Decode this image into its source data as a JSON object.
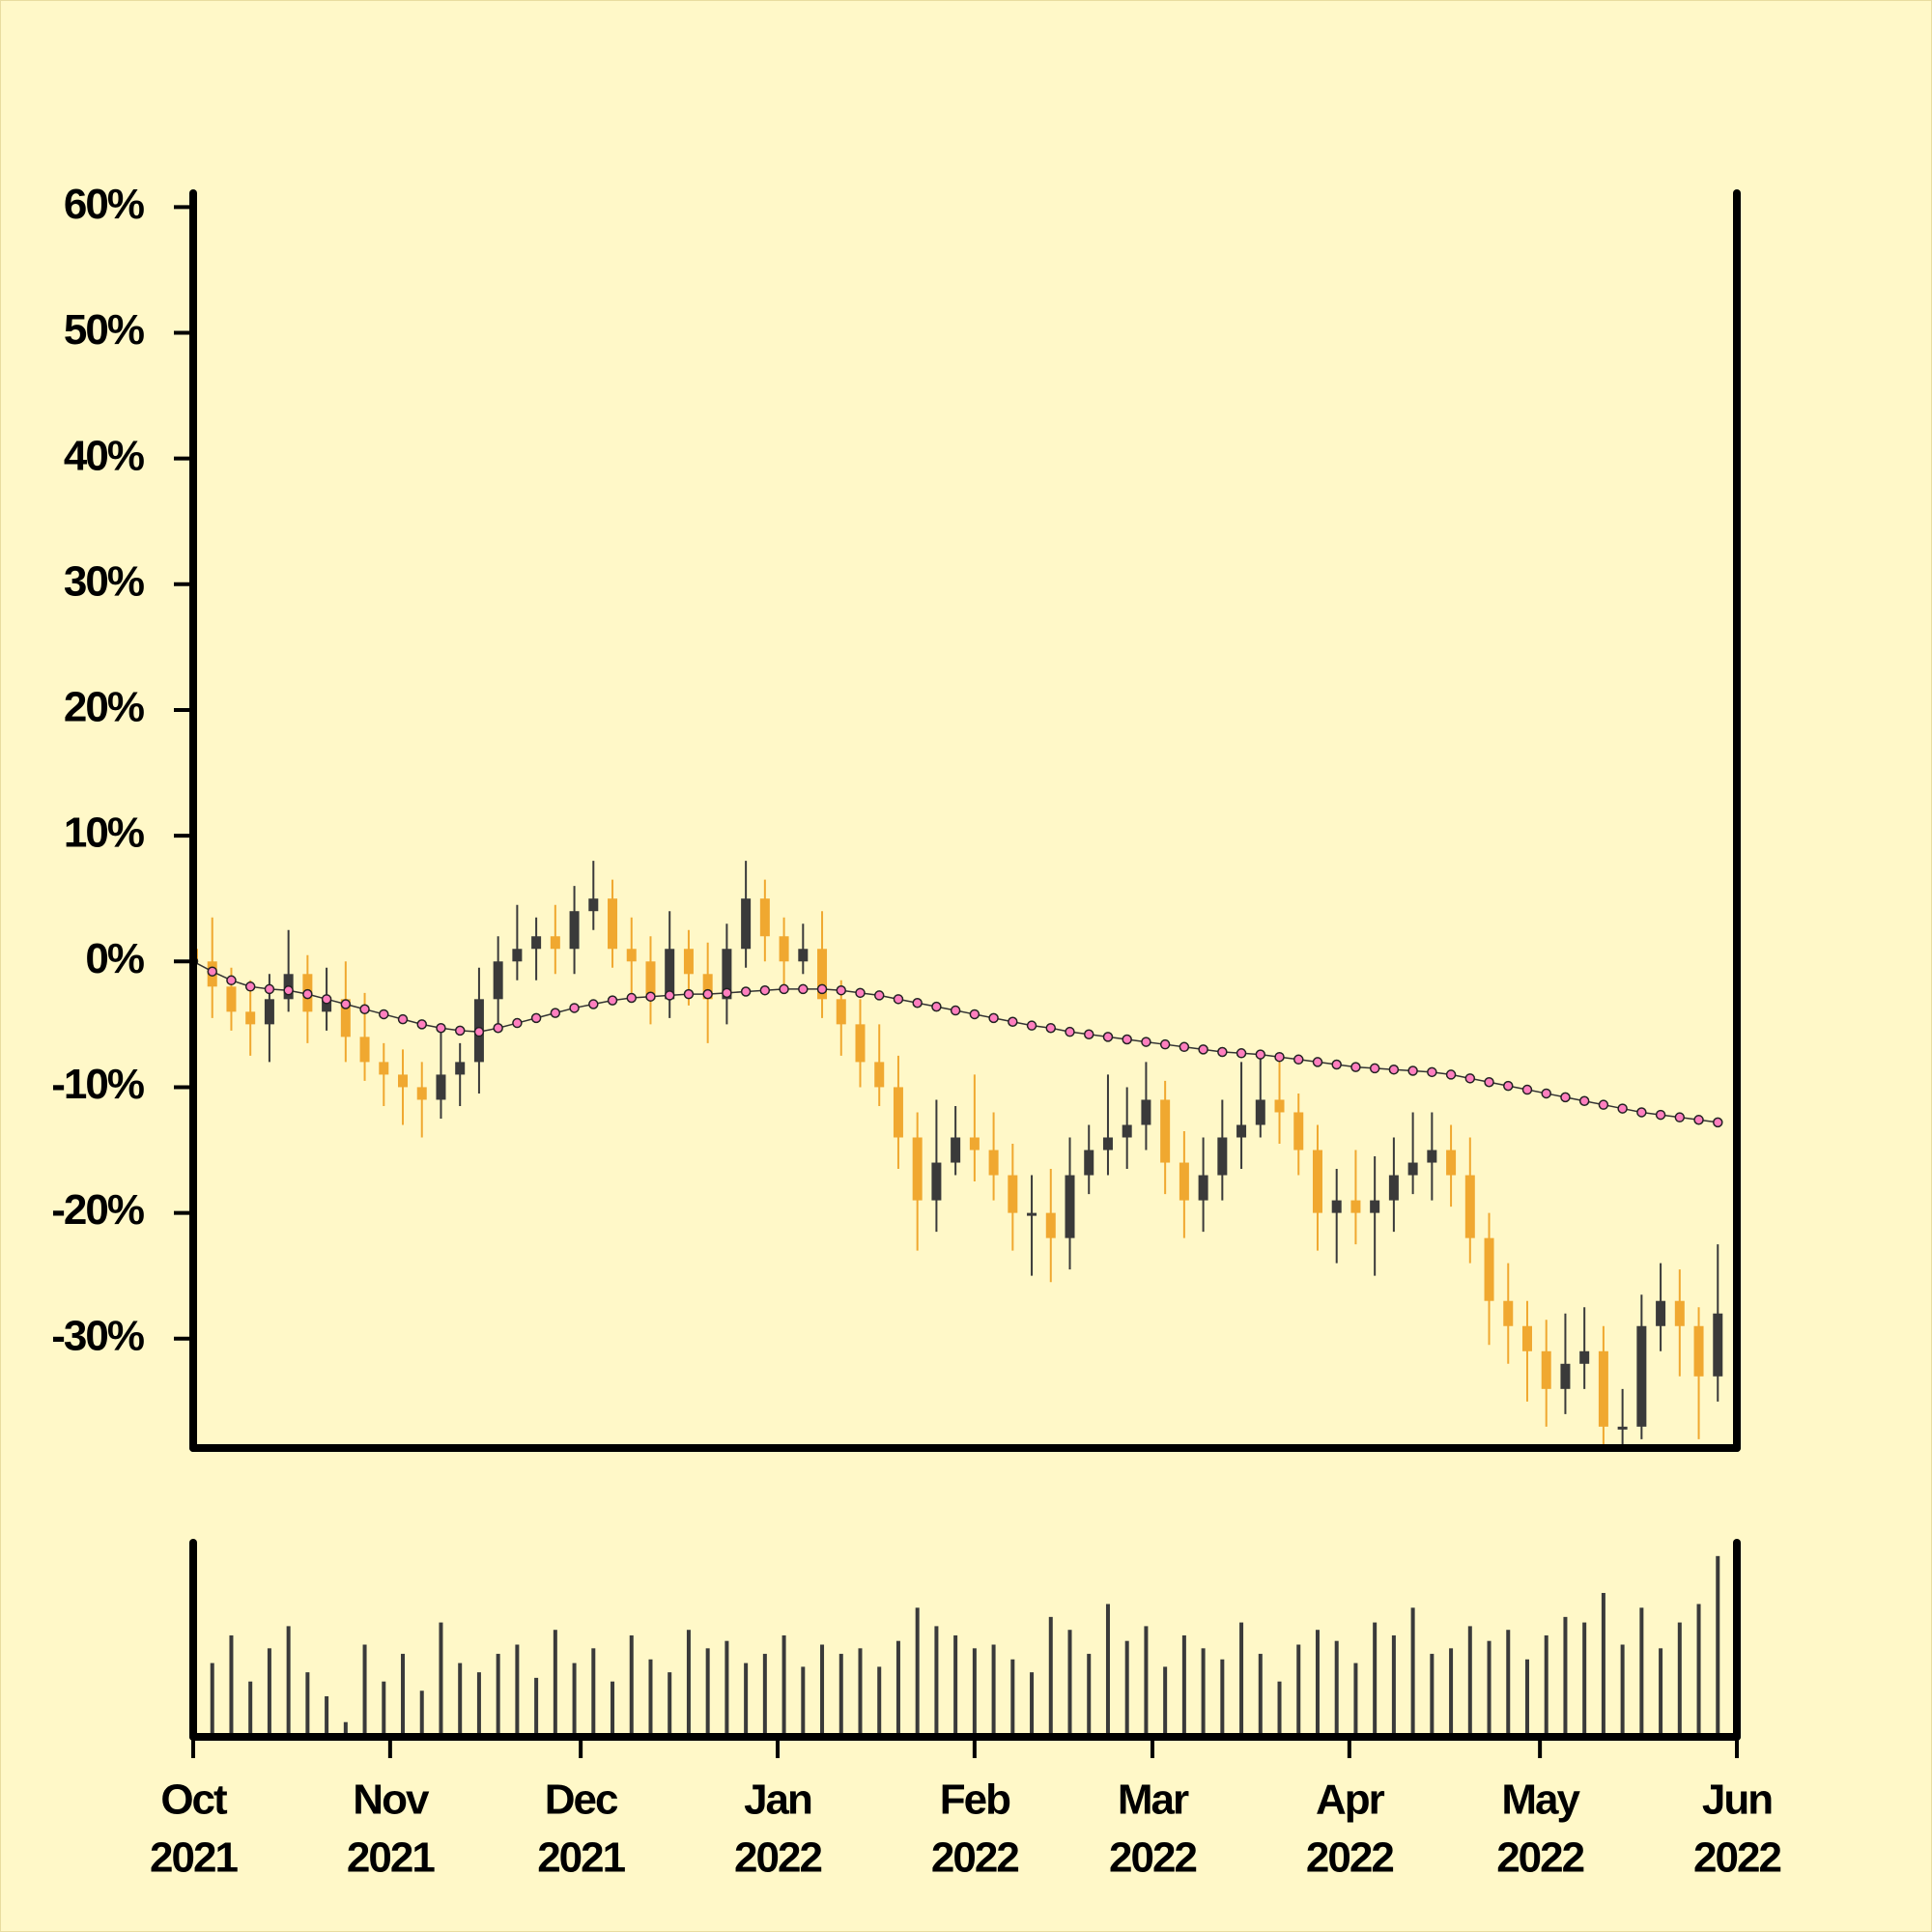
{
  "chart_data": {
    "type": "candlestick",
    "x": [
      0,
      3,
      6,
      9,
      12,
      15,
      18,
      21,
      24,
      27,
      30,
      33,
      36,
      39,
      42,
      45,
      48,
      51,
      54,
      57,
      60,
      63,
      66,
      69,
      72,
      75,
      78,
      81,
      84,
      87,
      90,
      93,
      96,
      99,
      102,
      105,
      108,
      111,
      114,
      117,
      120,
      123,
      126,
      129,
      132,
      135,
      138,
      141,
      144,
      147,
      150,
      153,
      156,
      159,
      162,
      165,
      168,
      171,
      174,
      177,
      180,
      183,
      186,
      189,
      192,
      195,
      198,
      201,
      204,
      207,
      210,
      213,
      216,
      219,
      222,
      225,
      228,
      231,
      234,
      237,
      240
    ],
    "xlim": [
      0,
      243
    ],
    "xticks": [
      {
        "value": 0,
        "label": [
          "Oct",
          "2021"
        ]
      },
      {
        "value": 31,
        "label": [
          "Nov",
          "2021"
        ]
      },
      {
        "value": 61,
        "label": [
          "Dec",
          "2021"
        ]
      },
      {
        "value": 92,
        "label": [
          "Jan",
          "2022"
        ]
      },
      {
        "value": 123,
        "label": [
          "Feb",
          "2022"
        ]
      },
      {
        "value": 151,
        "label": [
          "Mar",
          "2022"
        ]
      },
      {
        "value": 182,
        "label": [
          "Apr",
          "2022"
        ]
      },
      {
        "value": 212,
        "label": [
          "May",
          "2022"
        ]
      },
      {
        "value": 243,
        "label": [
          "Jun",
          "2022"
        ]
      }
    ],
    "ylim": [
      -38.7,
      61.1
    ],
    "yticks": [
      {
        "value": 60,
        "label": "60%"
      },
      {
        "value": 50,
        "label": "50%"
      },
      {
        "value": 40,
        "label": "40%"
      },
      {
        "value": 30,
        "label": "30%"
      },
      {
        "value": 20,
        "label": "20%"
      },
      {
        "value": 10,
        "label": "10%"
      },
      {
        "value": 0,
        "label": "0%"
      },
      {
        "value": -10,
        "label": "-10%"
      },
      {
        "value": -20,
        "label": "-20%"
      },
      {
        "value": -30,
        "label": "-30%"
      }
    ],
    "open": [
      1,
      0,
      -2,
      -4,
      -5,
      -3,
      -1,
      -4,
      -3,
      -6,
      -8,
      -9,
      -10,
      -11,
      -9,
      -8,
      -3,
      0,
      1,
      2,
      1,
      4,
      5,
      1,
      0,
      -3,
      1,
      -1,
      -3,
      1,
      5,
      2,
      0,
      1,
      -3,
      -5,
      -8,
      -10,
      -14,
      -19,
      -16,
      -14,
      -15,
      -17,
      -20,
      -20,
      -22,
      -17,
      -15,
      -14,
      -13,
      -11,
      -16,
      -19,
      -17,
      -14,
      -13,
      -11,
      -12,
      -15,
      -20,
      -19,
      -20,
      -19,
      -17,
      -16,
      -15,
      -17,
      -22,
      -27,
      -29,
      -31,
      -34,
      -32,
      -31,
      -37,
      -37,
      -29,
      -27,
      -29,
      -33
    ],
    "high": [
      3,
      3.5,
      -0.5,
      -1.5,
      -1,
      2.5,
      0.5,
      -0.5,
      0,
      -2.5,
      -6.5,
      -7,
      -8,
      -5.5,
      -6.5,
      -0.5,
      2,
      4.5,
      3.5,
      4.5,
      6,
      8,
      6.5,
      3.5,
      2,
      4,
      2.5,
      1.5,
      3,
      8,
      6.5,
      3.5,
      3,
      4,
      -1.5,
      -3,
      -5,
      -7.5,
      -12,
      -11,
      -11.5,
      -9,
      -12,
      -14.5,
      -17,
      -16.5,
      -14,
      -13,
      -9,
      -10,
      -8,
      -9.5,
      -13.5,
      -14,
      -11,
      -8,
      -7.5,
      -8,
      -10.5,
      -13,
      -16.5,
      -15,
      -15.5,
      -14,
      -12,
      -12,
      -13,
      -14,
      -20,
      -24,
      -27,
      -28.5,
      -28,
      -27.5,
      -29,
      -34,
      -26.5,
      -24,
      -24.5,
      -27.5,
      -22.5
    ],
    "low": [
      -2,
      -4.5,
      -5.5,
      -7.5,
      -8,
      -4,
      -6.5,
      -5.5,
      -8,
      -9.5,
      -11.5,
      -13,
      -14,
      -12.5,
      -11.5,
      -10.5,
      -5,
      -1.5,
      -1.5,
      -1,
      -1,
      2.5,
      -0.5,
      -2.5,
      -5,
      -4.5,
      -3.5,
      -6.5,
      -5,
      -0.5,
      0,
      -2.5,
      -1,
      -4.5,
      -7.5,
      -10,
      -11.5,
      -16.5,
      -23,
      -21.5,
      -17,
      -17.5,
      -19,
      -23,
      -25,
      -25.5,
      -24.5,
      -18.5,
      -17,
      -16.5,
      -15,
      -18.5,
      -22,
      -21.5,
      -19,
      -16.5,
      -14,
      -14.5,
      -17,
      -23,
      -24,
      -22.5,
      -25,
      -21.5,
      -18.5,
      -19,
      -19.5,
      -24,
      -30.5,
      -32,
      -35,
      -37,
      -36,
      -34,
      -40,
      -40,
      -38,
      -31,
      -33,
      -38,
      -35
    ],
    "close": [
      0,
      -2,
      -4,
      -5,
      -3,
      -1,
      -4,
      -3,
      -6,
      -8,
      -9,
      -10,
      -11,
      -9,
      -8,
      -3,
      0,
      1,
      2,
      1,
      4,
      5,
      1,
      0,
      -3,
      1,
      -1,
      -3,
      1,
      5,
      2,
      0,
      1,
      -3,
      -5,
      -8,
      -10,
      -14,
      -19,
      -16,
      -14,
      -15,
      -17,
      -20,
      -20,
      -22,
      -17,
      -15,
      -14,
      -13,
      -11,
      -16,
      -19,
      -17,
      -14,
      -13,
      -11,
      -12,
      -15,
      -20,
      -19,
      -20,
      -19,
      -17,
      -16,
      -15,
      -17,
      -22,
      -27,
      -29,
      -31,
      -34,
      -32,
      -31,
      -37,
      -37,
      -29,
      -27,
      -29,
      -33,
      -28
    ],
    "up_color": "#3a3a3a",
    "down_color": "#f0a830",
    "moving_average": {
      "color": "#ff7fbf",
      "values": [
        0,
        -0.8,
        -1.5,
        -2,
        -2.2,
        -2.3,
        -2.6,
        -3,
        -3.4,
        -3.8,
        -4.2,
        -4.6,
        -5,
        -5.3,
        -5.5,
        -5.6,
        -5.3,
        -4.9,
        -4.5,
        -4.1,
        -3.7,
        -3.4,
        -3.1,
        -2.9,
        -2.8,
        -2.7,
        -2.6,
        -2.6,
        -2.5,
        -2.4,
        -2.3,
        -2.2,
        -2.2,
        -2.2,
        -2.3,
        -2.5,
        -2.7,
        -3,
        -3.3,
        -3.6,
        -3.9,
        -4.2,
        -4.5,
        -4.8,
        -5.1,
        -5.3,
        -5.6,
        -5.8,
        -6,
        -6.2,
        -6.4,
        -6.6,
        -6.8,
        -7,
        -7.2,
        -7.3,
        -7.4,
        -7.6,
        -7.8,
        -8,
        -8.2,
        -8.4,
        -8.5,
        -8.6,
        -8.7,
        -8.8,
        -9,
        -9.3,
        -9.6,
        -9.9,
        -10.2,
        -10.5,
        -10.8,
        -11.1,
        -11.4,
        -11.7,
        -12,
        -12.2,
        -12.4,
        -12.6,
        -12.8
      ]
    },
    "volume": {
      "color": "#3a3a3a",
      "ylim": [
        0,
        100
      ],
      "values": [
        62,
        40,
        55,
        30,
        48,
        60,
        35,
        22,
        8,
        50,
        30,
        45,
        25,
        62,
        40,
        35,
        45,
        50,
        32,
        58,
        40,
        48,
        30,
        55,
        42,
        35,
        58,
        48,
        52,
        40,
        45,
        55,
        38,
        50,
        45,
        48,
        38,
        52,
        70,
        60,
        55,
        48,
        50,
        42,
        35,
        65,
        58,
        45,
        72,
        52,
        60,
        38,
        55,
        48,
        42,
        62,
        45,
        30,
        50,
        58,
        52,
        40,
        62,
        55,
        70,
        45,
        48,
        60,
        52,
        58,
        42,
        55,
        65,
        62,
        78,
        50,
        70,
        48,
        62,
        72,
        98
      ]
    },
    "grid": false
  }
}
